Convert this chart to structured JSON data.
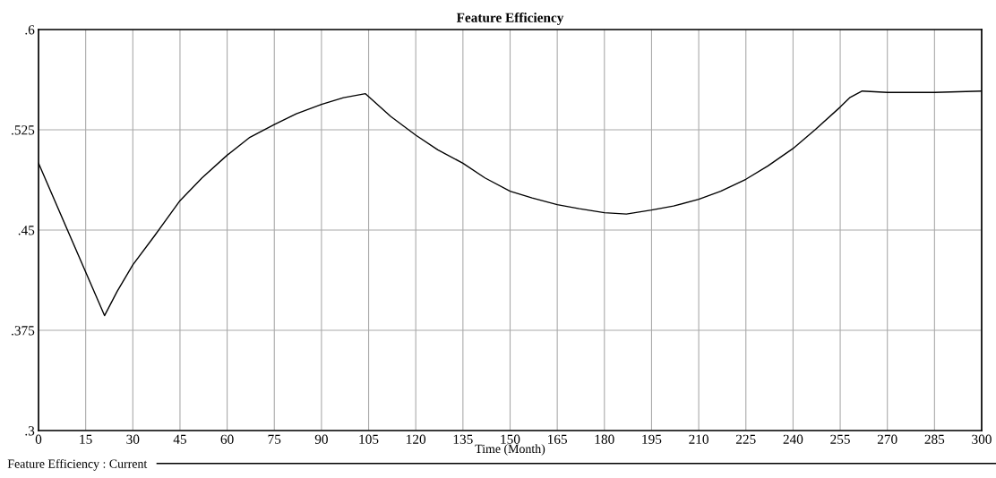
{
  "chart_data": {
    "type": "line",
    "title": "Feature Efficiency",
    "xlabel": "Time (Month)",
    "x": [
      0,
      21,
      25,
      30,
      37,
      45,
      52,
      60,
      67,
      75,
      82,
      90,
      97,
      104,
      112,
      120,
      127,
      135,
      142,
      150,
      157,
      165,
      172,
      180,
      187,
      195,
      202,
      210,
      217,
      225,
      232,
      240,
      247,
      255,
      258,
      262,
      270,
      285,
      300
    ],
    "series": [
      {
        "name": "Feature Efficiency : Current",
        "color": "#000000",
        "values": [
          0.5,
          0.386,
          0.404,
          0.424,
          0.446,
          0.472,
          0.489,
          0.506,
          0.519,
          0.529,
          0.537,
          0.544,
          0.549,
          0.552,
          0.535,
          0.521,
          0.51,
          0.5,
          0.489,
          0.479,
          0.474,
          0.469,
          0.466,
          0.463,
          0.462,
          0.465,
          0.468,
          0.473,
          0.479,
          0.488,
          0.498,
          0.511,
          0.525,
          0.542,
          0.549,
          0.554,
          0.553,
          0.553,
          0.554
        ]
      }
    ],
    "xlim": [
      0,
      300
    ],
    "ylim": [
      0.3,
      0.6
    ],
    "xticks": [
      0,
      15,
      30,
      45,
      60,
      75,
      90,
      105,
      120,
      135,
      150,
      165,
      180,
      195,
      210,
      225,
      240,
      255,
      270,
      285,
      300
    ],
    "yticks": [
      {
        "value": 0.3,
        "label": ".3"
      },
      {
        "value": 0.375,
        "label": ".375"
      },
      {
        "value": 0.45,
        "label": ".45"
      },
      {
        "value": 0.525,
        "label": ".525"
      },
      {
        "value": 0.6,
        "label": ".6"
      }
    ],
    "grid": true,
    "legend": "bottom left",
    "marker": "none",
    "line_style": "solid"
  }
}
